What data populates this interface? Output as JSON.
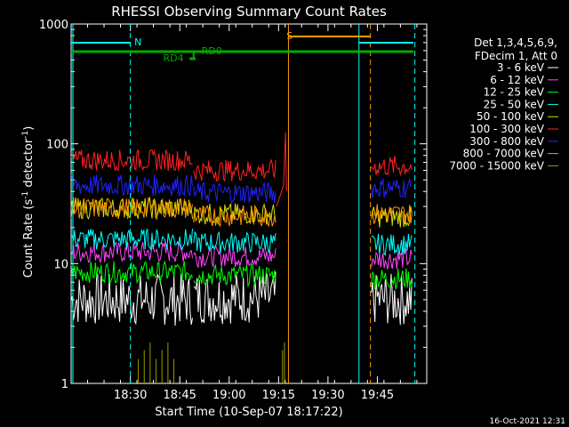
{
  "chart_data": {
    "type": "line",
    "title": "RHESSI Observing Summary Count Rates",
    "xlabel": "Start Time (10-Sep-07 18:17:22)",
    "ylabel_main": "Count Rate (s",
    "ylabel_sup": "-1",
    "ylabel_mid": " detector",
    "ylabel_tail": ")",
    "yscale": "log",
    "ylim": [
      1,
      1000
    ],
    "xlim_minutes": [
      18.2,
      20.0
    ],
    "yticks": [
      {
        "value": 1000,
        "label": "1000"
      },
      {
        "value": 100,
        "label": "100"
      },
      {
        "value": 10,
        "label": "10"
      },
      {
        "value": 1,
        "label": "1"
      }
    ],
    "xticks": [
      {
        "value": 18.5,
        "label": "18:30"
      },
      {
        "value": 18.75,
        "label": "18:45"
      },
      {
        "value": 19.0,
        "label": "19:00"
      },
      {
        "value": 19.25,
        "label": "19:15"
      },
      {
        "value": 19.5,
        "label": "19:30"
      },
      {
        "value": 19.75,
        "label": "19:45"
      }
    ],
    "legend_title_lines": [
      "Det 1,3,4,5,6,9,",
      "FDecim 1, Att 0"
    ],
    "series": [
      {
        "name": "3 - 6 keV",
        "color": "#ffffff",
        "level_segments": [
          [
            18.2,
            18.82,
            5.0
          ],
          [
            18.82,
            19.24,
            5.2
          ],
          [
            19.72,
            19.93,
            5.0
          ]
        ]
      },
      {
        "name": "6 - 12 keV",
        "color": "#ff44ff",
        "level_segments": [
          [
            18.2,
            18.82,
            12.5
          ],
          [
            18.82,
            19.24,
            11.5
          ],
          [
            19.72,
            19.93,
            11.0
          ]
        ]
      },
      {
        "name": "12 - 25 keV",
        "color": "#00ff00",
        "level_segments": [
          [
            18.2,
            18.82,
            8.5
          ],
          [
            18.82,
            19.24,
            8.0
          ],
          [
            19.72,
            19.93,
            7.5
          ]
        ]
      },
      {
        "name": "25 - 50 keV",
        "color": "#00ffff",
        "level_segments": [
          [
            18.2,
            18.82,
            16.0
          ],
          [
            18.82,
            19.24,
            15.0
          ],
          [
            19.72,
            19.93,
            14.5
          ]
        ]
      },
      {
        "name": "50 - 100 keV",
        "color": "#dddd00",
        "level_segments": [
          [
            18.2,
            18.82,
            29.0
          ],
          [
            18.82,
            19.24,
            26.0
          ],
          [
            19.72,
            19.93,
            24.5
          ]
        ]
      },
      {
        "name": "100 - 300 keV",
        "color": "#ff2222",
        "level_segments": [
          [
            18.2,
            18.82,
            73.0
          ],
          [
            18.82,
            19.24,
            60.0
          ],
          [
            19.72,
            19.93,
            65.0
          ]
        ]
      },
      {
        "name": "300 - 800 keV",
        "color": "#2222ff",
        "level_segments": [
          [
            18.2,
            18.82,
            45.0
          ],
          [
            18.82,
            19.24,
            39.0
          ],
          [
            19.72,
            19.93,
            43.0
          ]
        ]
      },
      {
        "name": "800 - 7000 keV",
        "color": "#ff9900",
        "level_segments": [
          [
            18.2,
            18.82,
            29.0
          ],
          [
            18.82,
            19.24,
            25.0
          ],
          [
            19.72,
            19.93,
            26.0
          ]
        ]
      },
      {
        "name": "7000 - 15000 keV",
        "color": "#999900",
        "level_segments": []
      }
    ],
    "annotations": [
      {
        "label": "N",
        "color": "#00ffff"
      },
      {
        "label": "S",
        "color": "#ff9900"
      },
      {
        "label": "RD0",
        "color": "#00aa00"
      },
      {
        "label": "RD4",
        "color": "#00aa00"
      }
    ],
    "grid": false,
    "legend_position": "right"
  },
  "footer": {
    "timestamp": "16-Oct-2021 12:31"
  },
  "colors": {
    "background": "#000000",
    "axes": "#ffffff"
  }
}
